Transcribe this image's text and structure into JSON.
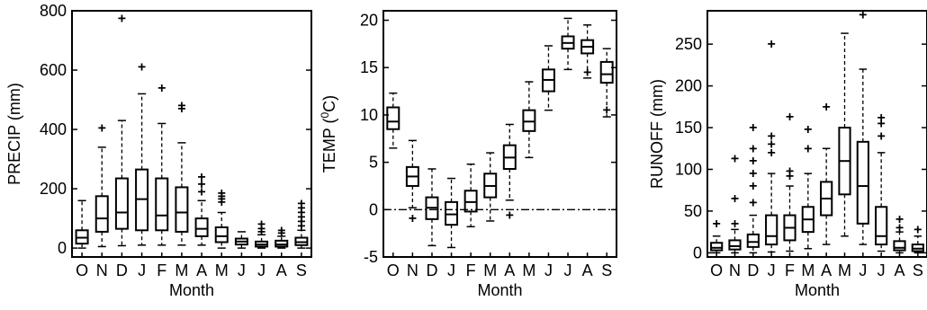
{
  "chart_data": [
    {
      "type": "box",
      "title": "",
      "xlabel": "Month",
      "ylabel": "PRECIP (mm)",
      "categories": [
        "O",
        "N",
        "D",
        "J",
        "F",
        "M",
        "A",
        "M",
        "J",
        "J",
        "A",
        "S"
      ],
      "ylim": [
        -30,
        800
      ],
      "yticks": [
        0,
        200,
        400,
        600,
        800
      ],
      "boxes": [
        {
          "whisker_low": 0,
          "q1": 15,
          "median": 35,
          "q3": 60,
          "whisker_high": 160,
          "outliers": []
        },
        {
          "whisker_low": 5,
          "q1": 55,
          "median": 100,
          "q3": 175,
          "whisker_high": 340,
          "outliers": [
            405
          ]
        },
        {
          "whisker_low": 8,
          "q1": 65,
          "median": 120,
          "q3": 235,
          "whisker_high": 430,
          "outliers": [
            775
          ]
        },
        {
          "whisker_low": 10,
          "q1": 60,
          "median": 165,
          "q3": 265,
          "whisker_high": 520,
          "outliers": [
            610
          ]
        },
        {
          "whisker_low": 10,
          "q1": 60,
          "median": 110,
          "q3": 235,
          "whisker_high": 420,
          "outliers": [
            540
          ]
        },
        {
          "whisker_low": 10,
          "q1": 55,
          "median": 120,
          "q3": 205,
          "whisker_high": 355,
          "outliers": [
            470,
            480
          ]
        },
        {
          "whisker_low": 10,
          "q1": 40,
          "median": 65,
          "q3": 100,
          "whisker_high": 160,
          "outliers": [
            190,
            215,
            240
          ]
        },
        {
          "whisker_low": 0,
          "q1": 20,
          "median": 40,
          "q3": 70,
          "whisker_high": 120,
          "outliers": [
            155,
            165,
            175,
            185
          ]
        },
        {
          "whisker_low": 0,
          "q1": 12,
          "median": 22,
          "q3": 32,
          "whisker_high": 55,
          "outliers": []
        },
        {
          "whisker_low": 0,
          "q1": 5,
          "median": 12,
          "q3": 22,
          "whisker_high": 45,
          "outliers": [
            55,
            65,
            80
          ]
        },
        {
          "whisker_low": 0,
          "q1": 5,
          "median": 12,
          "q3": 25,
          "whisker_high": 40,
          "outliers": [
            50,
            60
          ]
        },
        {
          "whisker_low": 0,
          "q1": 10,
          "median": 20,
          "q3": 35,
          "whisker_high": 60,
          "outliers": [
            75,
            90,
            105,
            120,
            135,
            150
          ]
        }
      ]
    },
    {
      "type": "box",
      "title": "",
      "xlabel": "Month",
      "ylabel": "TEMP (⁰C)",
      "ylabel_parts": [
        "TEMP (",
        "0",
        "C)"
      ],
      "categories": [
        "O",
        "N",
        "D",
        "J",
        "F",
        "M",
        "A",
        "M",
        "J",
        "J",
        "A",
        "S"
      ],
      "ylim": [
        -5,
        21
      ],
      "yticks": [
        -5,
        0,
        5,
        10,
        15,
        20
      ],
      "reference_line": {
        "y": 0,
        "style": "dash-dot"
      },
      "boxes": [
        {
          "whisker_low": 6.5,
          "q1": 8.5,
          "median": 9.3,
          "q3": 10.8,
          "whisker_high": 12.3,
          "outliers": []
        },
        {
          "whisker_low": 0.2,
          "q1": 2.5,
          "median": 3.5,
          "q3": 4.5,
          "whisker_high": 7.3,
          "outliers": [
            -0.9
          ]
        },
        {
          "whisker_low": -3.8,
          "q1": -1.0,
          "median": 0.2,
          "q3": 1.3,
          "whisker_high": 4.3,
          "outliers": []
        },
        {
          "whisker_low": -4.0,
          "q1": -1.6,
          "median": -0.5,
          "q3": 0.8,
          "whisker_high": 3.3,
          "outliers": []
        },
        {
          "whisker_low": -1.8,
          "q1": -0.2,
          "median": 0.8,
          "q3": 2.0,
          "whisker_high": 4.8,
          "outliers": []
        },
        {
          "whisker_low": -1.2,
          "q1": 1.3,
          "median": 2.5,
          "q3": 3.8,
          "whisker_high": 6.0,
          "outliers": []
        },
        {
          "whisker_low": 1.0,
          "q1": 4.3,
          "median": 5.5,
          "q3": 6.8,
          "whisker_high": 9.0,
          "outliers": [
            -0.6
          ]
        },
        {
          "whisker_low": 5.5,
          "q1": 8.3,
          "median": 9.3,
          "q3": 10.5,
          "whisker_high": 13.5,
          "outliers": []
        },
        {
          "whisker_low": 10.5,
          "q1": 12.5,
          "median": 13.7,
          "q3": 14.8,
          "whisker_high": 17.3,
          "outliers": []
        },
        {
          "whisker_low": 14.8,
          "q1": 17.0,
          "median": 17.6,
          "q3": 18.3,
          "whisker_high": 20.2,
          "outliers": []
        },
        {
          "whisker_low": 13.9,
          "q1": 16.5,
          "median": 17.2,
          "q3": 17.9,
          "whisker_high": 19.5,
          "outliers": [
            14.5
          ]
        },
        {
          "whisker_low": 9.8,
          "q1": 13.4,
          "median": 14.3,
          "q3": 15.6,
          "whisker_high": 17.0,
          "outliers": [
            10.5
          ]
        }
      ]
    },
    {
      "type": "box",
      "title": "",
      "xlabel": "Month",
      "ylabel": "RUNOFF (mm)",
      "categories": [
        "O",
        "N",
        "D",
        "J",
        "F",
        "M",
        "A",
        "M",
        "J",
        "J",
        "A",
        "S"
      ],
      "ylim": [
        -5,
        290
      ],
      "yticks": [
        0,
        50,
        100,
        150,
        200,
        250
      ],
      "boxes": [
        {
          "whisker_low": 0,
          "q1": 3,
          "median": 6,
          "q3": 12,
          "whisker_high": 20,
          "outliers": [
            35
          ]
        },
        {
          "whisker_low": 0,
          "q1": 4,
          "median": 8,
          "q3": 15,
          "whisker_high": 28,
          "outliers": [
            35,
            65,
            113
          ]
        },
        {
          "whisker_low": 0,
          "q1": 7,
          "median": 13,
          "q3": 22,
          "whisker_high": 45,
          "outliers": [
            60,
            80,
            95,
            110,
            125,
            150
          ]
        },
        {
          "whisker_low": 1,
          "q1": 10,
          "median": 20,
          "q3": 45,
          "whisker_high": 95,
          "outliers": [
            120,
            130,
            140,
            250
          ]
        },
        {
          "whisker_low": 2,
          "q1": 15,
          "median": 30,
          "q3": 45,
          "whisker_high": 80,
          "outliers": [
            92,
            98,
            163
          ]
        },
        {
          "whisker_low": 5,
          "q1": 25,
          "median": 40,
          "q3": 55,
          "whisker_high": 95,
          "outliers": [
            125,
            148
          ]
        },
        {
          "whisker_low": 10,
          "q1": 45,
          "median": 65,
          "q3": 85,
          "whisker_high": 125,
          "outliers": [
            175
          ]
        },
        {
          "whisker_low": 20,
          "q1": 70,
          "median": 110,
          "q3": 150,
          "whisker_high": 263,
          "outliers": []
        },
        {
          "whisker_low": 10,
          "q1": 35,
          "median": 80,
          "q3": 133,
          "whisker_high": 220,
          "outliers": [
            285
          ]
        },
        {
          "whisker_low": 2,
          "q1": 10,
          "median": 20,
          "q3": 55,
          "whisker_high": 120,
          "outliers": [
            140,
            155,
            162
          ]
        },
        {
          "whisker_low": 0,
          "q1": 3,
          "median": 6,
          "q3": 14,
          "whisker_high": 25,
          "outliers": [
            30,
            40
          ]
        },
        {
          "whisker_low": 0,
          "q1": 2,
          "median": 5,
          "q3": 10,
          "whisker_high": 20,
          "outliers": [
            28
          ]
        }
      ]
    }
  ]
}
